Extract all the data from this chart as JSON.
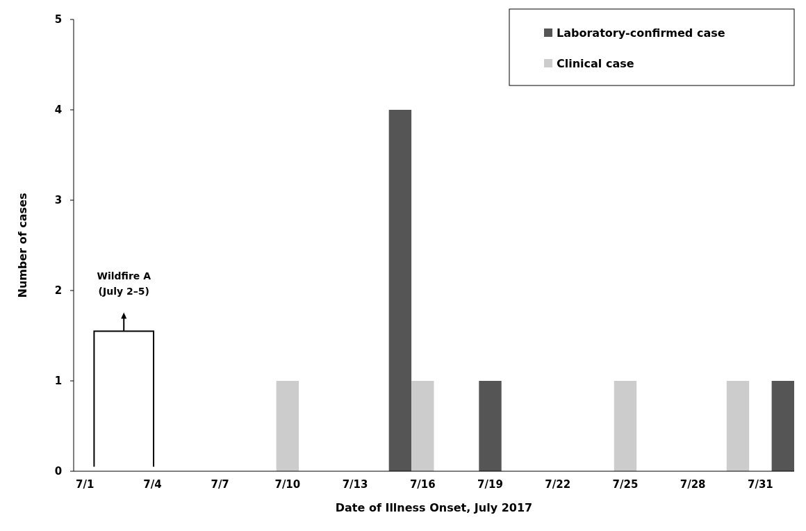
{
  "chart_data": {
    "type": "bar",
    "xlabel": "Date of Illness Onset, July 2017",
    "ylabel": "Number of cases",
    "categories": [
      "7/1",
      null,
      null,
      "7/4",
      null,
      null,
      "7/7",
      null,
      null,
      "7/10",
      null,
      null,
      "7/13",
      null,
      null,
      "7/16",
      null,
      null,
      "7/19",
      null,
      null,
      "7/22",
      null,
      null,
      "7/25",
      null,
      null,
      "7/28",
      null,
      null,
      "7/31",
      null
    ],
    "series": [
      {
        "name": "Laboratory-confirmed case",
        "color": "#555555",
        "values": [
          null,
          null,
          null,
          null,
          null,
          null,
          null,
          null,
          null,
          null,
          null,
          null,
          null,
          null,
          4,
          null,
          null,
          null,
          1,
          null,
          null,
          null,
          null,
          null,
          null,
          null,
          null,
          null,
          null,
          null,
          null,
          1
        ]
      },
      {
        "name": "Clinical case",
        "color": "#cccccc",
        "values": [
          null,
          null,
          null,
          null,
          null,
          null,
          null,
          null,
          null,
          1,
          null,
          null,
          null,
          null,
          null,
          1,
          null,
          null,
          null,
          null,
          null,
          null,
          null,
          null,
          1,
          null,
          null,
          null,
          null,
          1,
          null,
          null
        ]
      }
    ],
    "stacked": true,
    "ylim": [
      0,
      5
    ],
    "yticks": [
      0,
      1,
      2,
      3,
      4,
      5
    ],
    "grid": false,
    "legend": "top right",
    "annotations": [
      "Wildfire A\n(July 2–5)"
    ]
  }
}
